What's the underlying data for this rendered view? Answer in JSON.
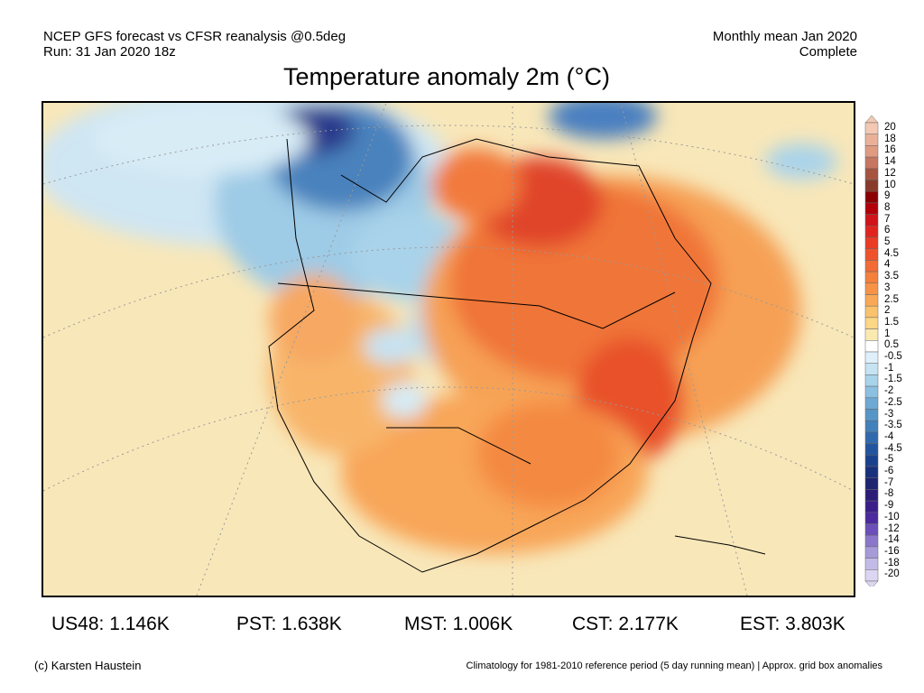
{
  "header": {
    "left_line1": "NCEP GFS forecast vs CFSR reanalysis @0.5deg",
    "left_line2": "Run: 31 Jan 2020 18z",
    "right_line1": "Monthly mean Jan 2020",
    "right_line2": "Complete"
  },
  "title": "Temperature anomaly 2m (°C)",
  "stats": [
    {
      "label": "US48: 1.146K"
    },
    {
      "label": "PST: 1.638K"
    },
    {
      "label": "MST: 1.006K"
    },
    {
      "label": "CST: 2.177K"
    },
    {
      "label": "EST: 3.803K"
    }
  ],
  "footer": {
    "left": "(c) Karsten Haustein",
    "right": "Climatology for 1981-2010 reference period (5 day running mean) | Approx. grid box anomalies"
  },
  "colorbar": {
    "levels": [
      "20",
      "18",
      "16",
      "14",
      "12",
      "10",
      "9",
      "8",
      "7",
      "6",
      "5",
      "4.5",
      "4",
      "3.5",
      "3",
      "2.5",
      "2",
      "1.5",
      "1",
      "0.5",
      "-0.5",
      "-1",
      "-1.5",
      "-2",
      "-2.5",
      "-3",
      "-3.5",
      "-4",
      "-4.5",
      "-5",
      "-6",
      "-7",
      "-8",
      "-9",
      "-10",
      "-12",
      "-14",
      "-16",
      "-18",
      "-20"
    ],
    "colors": [
      "#f3c9b3",
      "#eab198",
      "#e09a80",
      "#c77660",
      "#a6543f",
      "#8a3a2a",
      "#8b0000",
      "#b2000a",
      "#d0141a",
      "#e0251f",
      "#ea3b24",
      "#ef532b",
      "#f26a34",
      "#f4803c",
      "#f69346",
      "#f8a856",
      "#fac26c",
      "#fbd786",
      "#fbeab0",
      "#ffffff",
      "#dff0fa",
      "#c6e3f3",
      "#a8d3ea",
      "#8cc0e0",
      "#6ea9d3",
      "#5696c7",
      "#4281bb",
      "#3169ad",
      "#22559d",
      "#1a418d",
      "#18317d",
      "#1e2470",
      "#2b1d77",
      "#3a1e8a",
      "#4c2a9e",
      "#6b4fb8",
      "#8a76cb",
      "#a79ad9",
      "#c3bbe7",
      "#dcd6f2"
    ]
  }
}
